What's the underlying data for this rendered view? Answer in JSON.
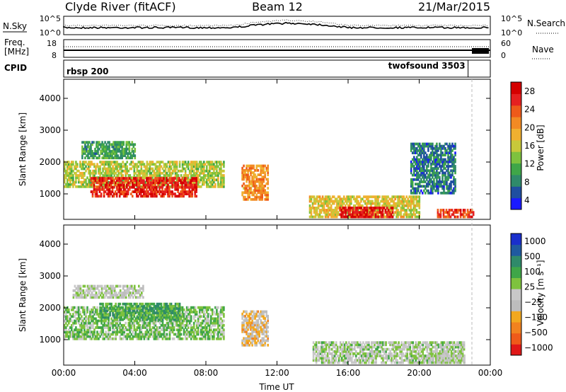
{
  "header": {
    "title": "Clyde River (fitACF)",
    "beam": "Beam 12",
    "date": "21/Mar/2015"
  },
  "aux_panels": {
    "nsky_label": "N.Sky",
    "nsearch_label": "N.Search",
    "nsky_ticks": [
      "10^5",
      "10^0"
    ],
    "nsearch_ticks": [
      "10^5",
      "10^0"
    ],
    "freq_label_1": "Freq.",
    "freq_label_2": "[MHz]",
    "freq_ticks": [
      "18",
      "8"
    ],
    "nave_label": "Nave",
    "nave_ticks": [
      "60",
      "0"
    ],
    "cpid_label": "CPID",
    "cpid_segments": [
      {
        "name": "rbsp 200",
        "start_hour": 0,
        "end_hour": 22.75
      },
      {
        "name": "twofsound 3503",
        "start_hour": 22.75,
        "end_hour": 24
      }
    ]
  },
  "chart_data": [
    {
      "type": "heatmap",
      "panel": "power",
      "ylabel": "Slant Range [km]",
      "xlabel": "Time UT",
      "xlim": [
        0,
        24
      ],
      "ylim": [
        200,
        4600
      ],
      "x_tick_labels": [
        "00:00",
        "04:00",
        "08:00",
        "12:00",
        "16:00",
        "20:00",
        "00:00"
      ],
      "y_tick_labels": [
        "1000",
        "2000",
        "3000",
        "4000"
      ],
      "colorbar": {
        "label": "Power [dB]",
        "ticks": [
          "28",
          "24",
          "20",
          "16",
          "12",
          "8",
          "4"
        ],
        "range": [
          0,
          30
        ],
        "colors": [
          "#1a1aff",
          "#1f4fa0",
          "#2f8a6a",
          "#3fa648",
          "#7ec23e",
          "#c8c83a",
          "#f0b030",
          "#f28a24",
          "#ee5a1a",
          "#e52020",
          "#d40000"
        ]
      },
      "regions": [
        {
          "t0": 0.0,
          "t1": 9.0,
          "r0": 1200,
          "r1": 2000,
          "value": 14
        },
        {
          "t0": 1.5,
          "t1": 7.5,
          "r0": 900,
          "r1": 1500,
          "value": 26
        },
        {
          "t0": 1.0,
          "t1": 4.0,
          "r0": 2100,
          "r1": 2600,
          "value": 9
        },
        {
          "t0": 10.0,
          "t1": 11.5,
          "r0": 800,
          "r1": 1900,
          "value": 20
        },
        {
          "t0": 13.8,
          "t1": 20.0,
          "r0": 250,
          "r1": 900,
          "value": 16
        },
        {
          "t0": 15.5,
          "t1": 18.5,
          "r0": 250,
          "r1": 600,
          "value": 27
        },
        {
          "t0": 21.0,
          "t1": 23.0,
          "r0": 250,
          "r1": 500,
          "value": 25
        },
        {
          "t0": 19.5,
          "t1": 22.0,
          "r0": 1000,
          "r1": 2600,
          "value": 6
        }
      ]
    },
    {
      "type": "heatmap",
      "panel": "velocity",
      "ylabel": "Slant Range [km]",
      "xlabel": "Time UT",
      "xlim": [
        0,
        24
      ],
      "ylim": [
        200,
        4600
      ],
      "x_tick_labels": [
        "00:00",
        "04:00",
        "08:00",
        "12:00",
        "16:00",
        "20:00",
        "00:00"
      ],
      "y_tick_labels": [
        "1000",
        "2000",
        "3000",
        "4000"
      ],
      "colorbar": {
        "label": "Velocity [m s⁻¹]",
        "ticks": [
          "1000",
          "500",
          "100",
          "25",
          "−25",
          "−100",
          "−500",
          "−1000"
        ],
        "range": [
          -1200,
          1200
        ],
        "colors": [
          "#e01818",
          "#ef5a1a",
          "#f2821f",
          "#f2a81f",
          "#bdbdbd",
          "#c8c8c8",
          "#7ec23e",
          "#3fa648",
          "#2f8a6a",
          "#1f5aa0",
          "#1a2fcc"
        ]
      },
      "regions": [
        {
          "t0": 0.0,
          "t1": 9.0,
          "r0": 1000,
          "r1": 2000,
          "value": 250
        },
        {
          "t0": 2.0,
          "t1": 6.5,
          "r0": 1600,
          "r1": 2100,
          "value": 450
        },
        {
          "t0": 0.5,
          "t1": 4.5,
          "r0": 2300,
          "r1": 2700,
          "value": 0
        },
        {
          "t0": 10.0,
          "t1": 11.5,
          "r0": 800,
          "r1": 1900,
          "value": -300
        },
        {
          "t0": 14.0,
          "t1": 22.5,
          "r0": 250,
          "r1": 900,
          "value": 80
        },
        {
          "t0": 20.5,
          "t1": 22.5,
          "r0": 250,
          "r1": 500,
          "value": 0
        }
      ]
    }
  ]
}
